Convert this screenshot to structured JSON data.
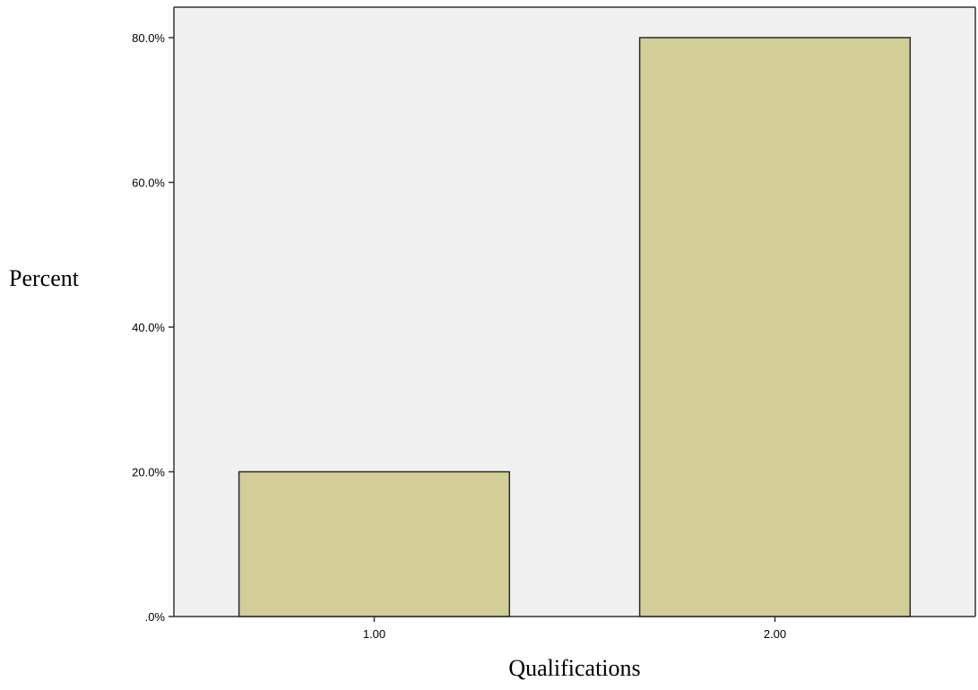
{
  "chart_data": {
    "type": "bar",
    "categories": [
      "1.00",
      "2.00"
    ],
    "values": [
      20.0,
      80.0
    ],
    "xlabel": "Qualifications",
    "ylabel": "Percent",
    "ylim": [
      0,
      80
    ],
    "yticks": [
      0,
      20,
      40,
      60,
      80
    ],
    "ytick_labels": [
      ".0%",
      "20.0%",
      "40.0%",
      "60.0%",
      "80.0%"
    ],
    "grid": false,
    "legend": "none",
    "colors": {
      "plot_background": "#f0f0f0",
      "bar_fill": "#d3ce98",
      "bar_stroke": "#2b2b2b",
      "axis": "#333333"
    }
  }
}
